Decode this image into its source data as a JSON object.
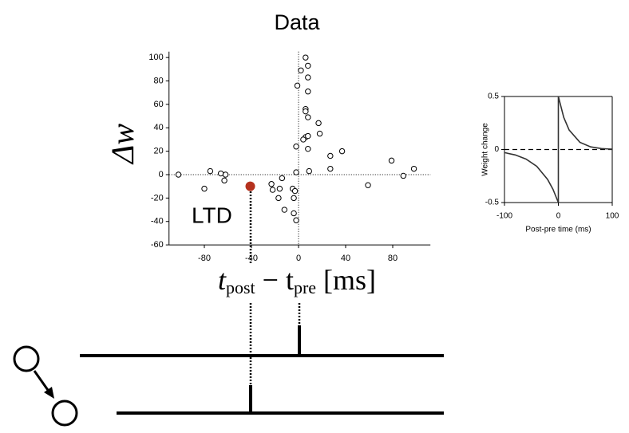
{
  "chart_data": [
    {
      "type": "scatter",
      "title": "Data",
      "y_label": "Δw",
      "x_label": [
        "t",
        "post",
        " − t",
        "pre",
        " [ms]"
      ],
      "x": [
        -102,
        -75,
        -80,
        -66,
        -63,
        -62,
        -23,
        -22,
        -16,
        -14,
        -17,
        -12,
        -5,
        -3,
        -4,
        -4,
        -2,
        -2,
        -2,
        -1,
        2,
        6,
        8,
        8,
        8,
        6,
        6,
        8,
        6,
        8,
        4,
        8,
        9,
        17,
        18,
        27,
        27,
        37,
        59,
        79,
        89,
        98
      ],
      "values": [
        0,
        3,
        -12,
        1,
        -5,
        0,
        -8,
        -13,
        -12,
        -3,
        -20,
        -30,
        -12,
        -14,
        -20,
        -33,
        -39,
        2,
        24,
        76,
        89,
        100,
        93,
        83,
        71,
        56,
        54,
        49,
        32,
        33,
        30,
        22,
        3,
        44,
        35,
        16,
        5,
        20,
        -9,
        12,
        -1,
        5
      ],
      "highlight": {
        "x": -41,
        "value": -10,
        "color": "#b5311e"
      },
      "annotation": "LTD",
      "xlim": [
        -110,
        112
      ],
      "ylim": [
        -60,
        105
      ],
      "xticks": [
        -80,
        -40,
        0,
        40,
        80
      ],
      "yticks": [
        -60,
        -40,
        -20,
        0,
        20,
        40,
        60,
        80,
        100
      ],
      "zero_lines": true
    },
    {
      "type": "line",
      "x_label": "Post-pre time (ms)",
      "y_label": "Weight change",
      "x": [
        -100,
        -80,
        -60,
        -40,
        -20,
        -10,
        0,
        0,
        10,
        20,
        40,
        60,
        80,
        100
      ],
      "values": [
        -0.029,
        -0.051,
        -0.09,
        -0.159,
        -0.282,
        -0.375,
        -0.5,
        0.5,
        0.303,
        0.184,
        0.068,
        0.025,
        0.009,
        0.003
      ],
      "color": "#333333",
      "xlim": [
        -100,
        100
      ],
      "ylim": [
        -0.5,
        0.5
      ],
      "xticks": [
        -100,
        0,
        100
      ],
      "yticks": [
        -0.5,
        0,
        0.5
      ],
      "zero_lines": true
    }
  ]
}
